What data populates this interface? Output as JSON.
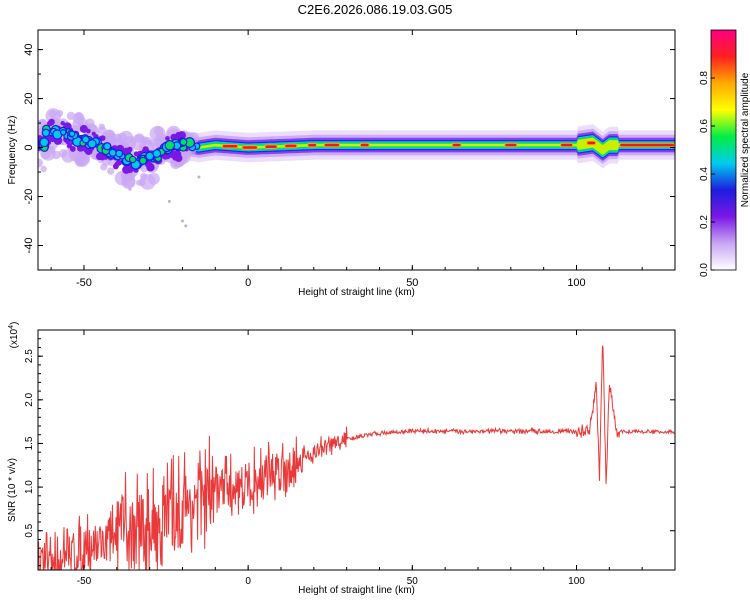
{
  "title": "C2E6.2026.086.19.03.G05",
  "chart_data": [
    {
      "type": "heatmap",
      "xlabel": "Height of straight line (km)",
      "ylabel": "Frequency (Hz)",
      "xlim": [
        -64,
        130
      ],
      "ylim": [
        -50,
        48
      ],
      "xticks": [
        -50,
        0,
        50,
        100
      ],
      "yticks": [
        -40,
        -20,
        0,
        20,
        40
      ],
      "colorbar": {
        "label": "Normalized spectral amplitude",
        "range": [
          0,
          1
        ],
        "ticks": [
          "0.0",
          "0.2",
          "0.4",
          "0.6",
          "0.8"
        ],
        "colors": [
          "#ffffff",
          "#c9a6f5",
          "#7a18e6",
          "#1d1de0",
          "#00ccee",
          "#00ee44",
          "#ffff00",
          "#ffaa00",
          "#ff2020",
          "#ff0080"
        ]
      },
      "ridge": {
        "description_points": [
          [
            -62,
            7
          ],
          [
            -55,
            5
          ],
          [
            -50,
            3
          ],
          [
            -45,
            1
          ],
          [
            -40,
            -3
          ],
          [
            -35,
            -6
          ],
          [
            -30,
            -5
          ],
          [
            -25,
            -1
          ],
          [
            -20,
            1
          ],
          [
            -15,
            0
          ],
          [
            -10,
            1
          ],
          [
            0,
            0
          ],
          [
            20,
            1
          ],
          [
            50,
            1
          ],
          [
            100,
            1
          ],
          [
            105,
            2
          ],
          [
            108,
            -1
          ],
          [
            110,
            1
          ],
          [
            130,
            1
          ]
        ]
      }
    },
    {
      "type": "line",
      "xlabel": "Height of straight line (km)",
      "ylabel": "SNR (10 * v/v)",
      "yscale_label": "(x10",
      "yscale_exp": "4",
      "xlim": [
        -64,
        130
      ],
      "ylim": [
        0.05,
        2.8
      ],
      "xticks": [
        -50,
        0,
        50,
        100
      ],
      "yticks": [
        "0.5",
        "1.0",
        "1.5",
        "2.0",
        "2.5"
      ],
      "color": "#e83a3a",
      "trend": {
        "x": [
          -64,
          -55,
          -50,
          -40,
          -30,
          -20,
          -10,
          0,
          10,
          20,
          30,
          40,
          50,
          60,
          70,
          80,
          90,
          100,
          104,
          106,
          107,
          108,
          109,
          110,
          112,
          130
        ],
        "y": [
          0.1,
          0.2,
          0.3,
          0.45,
          0.55,
          0.75,
          0.95,
          1.05,
          1.2,
          1.4,
          1.55,
          1.62,
          1.64,
          1.64,
          1.64,
          1.64,
          1.64,
          1.64,
          1.64,
          2.2,
          1.1,
          2.75,
          1.0,
          2.2,
          1.64,
          1.63
        ]
      }
    }
  ]
}
